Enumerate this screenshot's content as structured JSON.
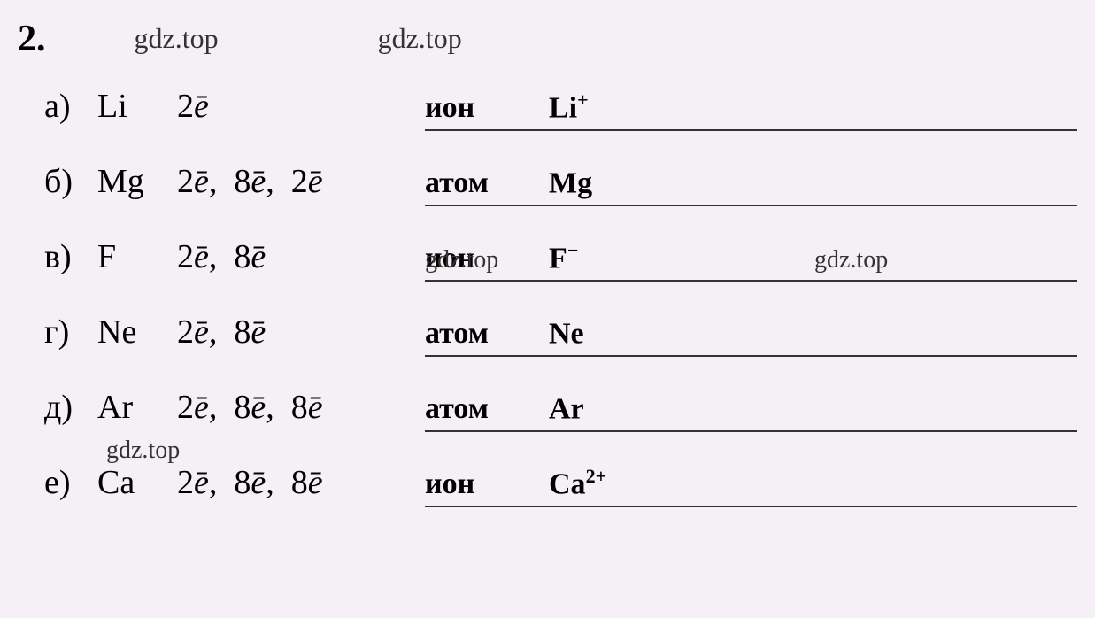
{
  "question_number": "2.",
  "watermarks": {
    "top1": "gdz.top",
    "top2": "gdz.top",
    "inline_c_left": "gdz.top",
    "inline_c_right": "gdz.top",
    "inline_d": "gdz.top"
  },
  "rows": [
    {
      "label": "а)",
      "element": "Li",
      "electrons_parts": [
        "2"
      ],
      "answer_type": "ион",
      "answer_formula": "Li",
      "answer_super": "+"
    },
    {
      "label": "б)",
      "element": "Mg",
      "electrons_parts": [
        "2",
        "8",
        "2"
      ],
      "answer_type": "атом",
      "answer_formula": "Mg",
      "answer_super": ""
    },
    {
      "label": "в)",
      "element": "F",
      "electrons_parts": [
        "2",
        "8"
      ],
      "answer_type": "ион",
      "answer_formula": "F",
      "answer_super": "−"
    },
    {
      "label": "г)",
      "element": "Ne",
      "electrons_parts": [
        "2",
        "8"
      ],
      "answer_type": "атом",
      "answer_formula": "Ne",
      "answer_super": ""
    },
    {
      "label": "д)",
      "element": "Ar",
      "electrons_parts": [
        "2",
        "8",
        "8"
      ],
      "answer_type": "атом",
      "answer_formula": "Ar",
      "answer_super": ""
    },
    {
      "label": "е)",
      "element": "Ca",
      "electrons_parts": [
        "2",
        "8",
        "8"
      ],
      "answer_type": "ион",
      "answer_formula": "Ca",
      "answer_super": "2+"
    }
  ],
  "styling": {
    "background_color": "#f5f0f5",
    "text_color": "#000000",
    "font_family": "Times New Roman",
    "question_number_fontsize": 42,
    "row_fontsize": 38,
    "answer_fontsize": 34,
    "watermark_fontsize": 32,
    "underline_color": "#333333",
    "underline_width": 2
  }
}
